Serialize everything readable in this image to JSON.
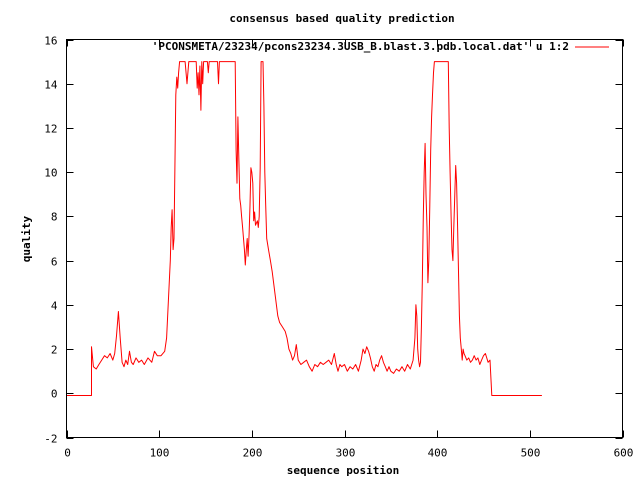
{
  "chart_data": {
    "type": "line",
    "title": "consensus based quality prediction",
    "xlabel": "sequence position",
    "ylabel": "quality",
    "xlim": [
      0,
      600
    ],
    "ylim": [
      -2,
      16
    ],
    "xticks": [
      0,
      100,
      200,
      300,
      400,
      500,
      600
    ],
    "yticks": [
      -2,
      0,
      2,
      4,
      6,
      8,
      10,
      12,
      14,
      16
    ],
    "grid": false,
    "legend_position": "top-right",
    "series": [
      {
        "name": "'PCONSMETA/23234/pcons23234.3USB_B.blast.3.pdb.local.dat' u 1:2",
        "color": "#ff0000",
        "points": [
          [
            0,
            -0.1
          ],
          [
            27,
            -0.1
          ],
          [
            27,
            2.1
          ],
          [
            29,
            1.2
          ],
          [
            32,
            1.1
          ],
          [
            35,
            1.3
          ],
          [
            38,
            1.5
          ],
          [
            41,
            1.7
          ],
          [
            44,
            1.6
          ],
          [
            47,
            1.8
          ],
          [
            50,
            1.5
          ],
          [
            52,
            1.8
          ],
          [
            54,
            2.6
          ],
          [
            56,
            3.7
          ],
          [
            58,
            2.5
          ],
          [
            60,
            1.4
          ],
          [
            62,
            1.2
          ],
          [
            64,
            1.5
          ],
          [
            66,
            1.3
          ],
          [
            68,
            1.9
          ],
          [
            70,
            1.4
          ],
          [
            72,
            1.3
          ],
          [
            75,
            1.6
          ],
          [
            78,
            1.4
          ],
          [
            81,
            1.5
          ],
          [
            84,
            1.3
          ],
          [
            88,
            1.6
          ],
          [
            92,
            1.4
          ],
          [
            95,
            1.9
          ],
          [
            98,
            1.7
          ],
          [
            102,
            1.7
          ],
          [
            106,
            1.9
          ],
          [
            108,
            2.5
          ],
          [
            110,
            4.2
          ],
          [
            112,
            6.0
          ],
          [
            113,
            7.5
          ],
          [
            114,
            8.3
          ],
          [
            115,
            6.5
          ],
          [
            116,
            7.0
          ],
          [
            117,
            10.2
          ],
          [
            118,
            13.5
          ],
          [
            119,
            14.3
          ],
          [
            120,
            13.8
          ],
          [
            121,
            14.5
          ],
          [
            122,
            15
          ],
          [
            128,
            15
          ],
          [
            130,
            14.0
          ],
          [
            132,
            15
          ],
          [
            140,
            15
          ],
          [
            141,
            13.8
          ],
          [
            142,
            14.5
          ],
          [
            143,
            13.5
          ],
          [
            144,
            14.8
          ],
          [
            145,
            12.8
          ],
          [
            146,
            15
          ],
          [
            147,
            14.0
          ],
          [
            148,
            15
          ],
          [
            152,
            15
          ],
          [
            153,
            14.5
          ],
          [
            154,
            15
          ],
          [
            163,
            15
          ],
          [
            164,
            14.0
          ],
          [
            165,
            15
          ],
          [
            182,
            15
          ],
          [
            183,
            11.0
          ],
          [
            184,
            9.5
          ],
          [
            185,
            12.5
          ],
          [
            186,
            10.5
          ],
          [
            187,
            8.8
          ],
          [
            188,
            8.5
          ],
          [
            189,
            8.0
          ],
          [
            190,
            7.5
          ],
          [
            191,
            7.0
          ],
          [
            192,
            6.5
          ],
          [
            193,
            5.8
          ],
          [
            194,
            6.5
          ],
          [
            195,
            7.0
          ],
          [
            196,
            6.2
          ],
          [
            197,
            7.2
          ],
          [
            198,
            8.5
          ],
          [
            199,
            10.2
          ],
          [
            200,
            10.0
          ],
          [
            201,
            9.5
          ],
          [
            202,
            7.8
          ],
          [
            203,
            8.2
          ],
          [
            204,
            7.6
          ],
          [
            206,
            7.8
          ],
          [
            207,
            7.5
          ],
          [
            208,
            8.0
          ],
          [
            209,
            10.2
          ],
          [
            210,
            15
          ],
          [
            212,
            15
          ],
          [
            213,
            13.0
          ],
          [
            214,
            10.0
          ],
          [
            215,
            8.5
          ],
          [
            216,
            7.0
          ],
          [
            218,
            6.5
          ],
          [
            220,
            6.0
          ],
          [
            222,
            5.5
          ],
          [
            225,
            4.5
          ],
          [
            228,
            3.5
          ],
          [
            230,
            3.2
          ],
          [
            233,
            3.0
          ],
          [
            236,
            2.8
          ],
          [
            238,
            2.5
          ],
          [
            240,
            2.0
          ],
          [
            242,
            1.8
          ],
          [
            244,
            1.5
          ],
          [
            246,
            1.7
          ],
          [
            248,
            2.2
          ],
          [
            250,
            1.5
          ],
          [
            253,
            1.3
          ],
          [
            256,
            1.4
          ],
          [
            259,
            1.5
          ],
          [
            262,
            1.2
          ],
          [
            265,
            1.0
          ],
          [
            268,
            1.3
          ],
          [
            271,
            1.2
          ],
          [
            274,
            1.4
          ],
          [
            277,
            1.3
          ],
          [
            280,
            1.4
          ],
          [
            283,
            1.5
          ],
          [
            286,
            1.3
          ],
          [
            289,
            1.8
          ],
          [
            291,
            1.3
          ],
          [
            293,
            1.0
          ],
          [
            295,
            1.3
          ],
          [
            297,
            1.2
          ],
          [
            300,
            1.3
          ],
          [
            303,
            1.0
          ],
          [
            306,
            1.2
          ],
          [
            309,
            1.1
          ],
          [
            312,
            1.3
          ],
          [
            315,
            1.0
          ],
          [
            318,
            1.5
          ],
          [
            320,
            2.0
          ],
          [
            322,
            1.8
          ],
          [
            324,
            2.1
          ],
          [
            326,
            1.9
          ],
          [
            328,
            1.6
          ],
          [
            330,
            1.2
          ],
          [
            332,
            1.0
          ],
          [
            334,
            1.3
          ],
          [
            336,
            1.2
          ],
          [
            338,
            1.5
          ],
          [
            340,
            1.7
          ],
          [
            342,
            1.4
          ],
          [
            344,
            1.2
          ],
          [
            346,
            1.0
          ],
          [
            348,
            1.2
          ],
          [
            350,
            1.0
          ],
          [
            353,
            0.9
          ],
          [
            356,
            1.1
          ],
          [
            359,
            1.0
          ],
          [
            362,
            1.2
          ],
          [
            365,
            1.0
          ],
          [
            368,
            1.3
          ],
          [
            371,
            1.1
          ],
          [
            374,
            1.5
          ],
          [
            376,
            2.5
          ],
          [
            377,
            4.0
          ],
          [
            378,
            3.5
          ],
          [
            379,
            2.0
          ],
          [
            380,
            1.5
          ],
          [
            381,
            1.2
          ],
          [
            382,
            1.4
          ],
          [
            383,
            3.0
          ],
          [
            384,
            5.0
          ],
          [
            385,
            8.0
          ],
          [
            386,
            10.0
          ],
          [
            387,
            11.3
          ],
          [
            388,
            9.0
          ],
          [
            389,
            7.5
          ],
          [
            390,
            5.0
          ],
          [
            391,
            6.0
          ],
          [
            392,
            8.5
          ],
          [
            393,
            11.0
          ],
          [
            394,
            12.5
          ],
          [
            395,
            13.5
          ],
          [
            396,
            14.5
          ],
          [
            397,
            15
          ],
          [
            412,
            15
          ],
          [
            413,
            12.0
          ],
          [
            414,
            10.0
          ],
          [
            415,
            8.0
          ],
          [
            416,
            6.5
          ],
          [
            417,
            6.0
          ],
          [
            418,
            7.5
          ],
          [
            419,
            9.0
          ],
          [
            420,
            10.3
          ],
          [
            421,
            9.5
          ],
          [
            422,
            7.5
          ],
          [
            423,
            5.5
          ],
          [
            424,
            3.5
          ],
          [
            425,
            2.5
          ],
          [
            426,
            2.0
          ],
          [
            427,
            1.5
          ],
          [
            428,
            2.0
          ],
          [
            429,
            1.8
          ],
          [
            430,
            1.7
          ],
          [
            432,
            1.5
          ],
          [
            434,
            1.6
          ],
          [
            436,
            1.4
          ],
          [
            438,
            1.5
          ],
          [
            440,
            1.7
          ],
          [
            442,
            1.5
          ],
          [
            444,
            1.6
          ],
          [
            446,
            1.3
          ],
          [
            448,
            1.5
          ],
          [
            450,
            1.7
          ],
          [
            452,
            1.8
          ],
          [
            455,
            1.4
          ],
          [
            457,
            1.5
          ],
          [
            459,
            -0.1
          ],
          [
            513,
            -0.1
          ]
        ]
      }
    ]
  }
}
